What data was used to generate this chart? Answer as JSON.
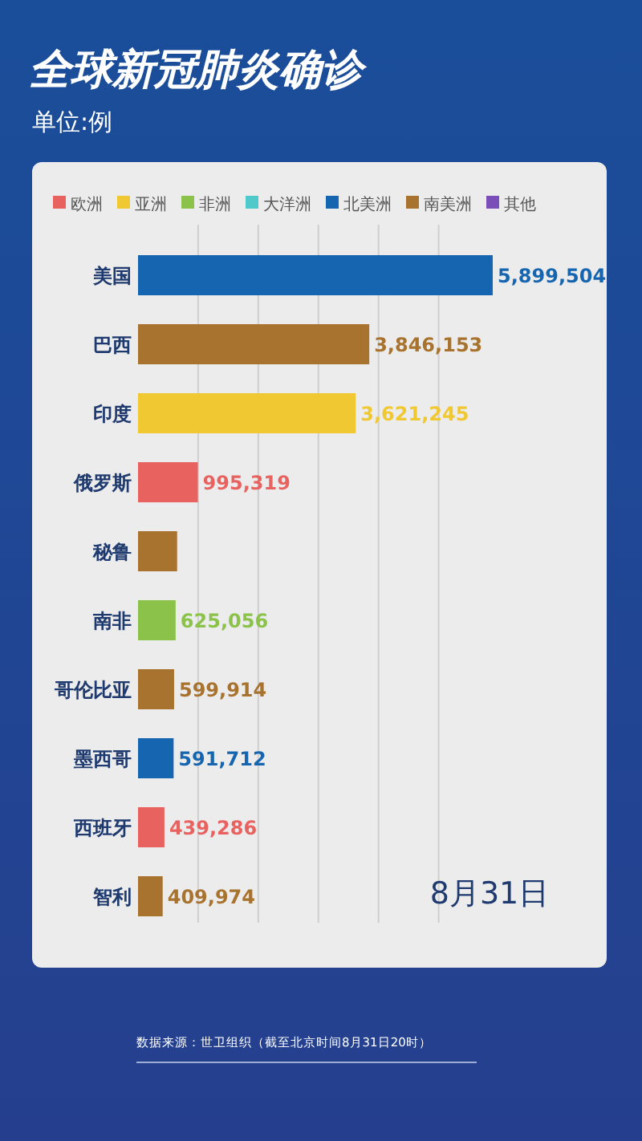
{
  "chart_data": {
    "type": "bar",
    "orientation": "horizontal",
    "stacked": true,
    "title": "全球新冠肺炎确诊",
    "subtitle": "单位:例",
    "categories": [
      "美国",
      "巴西",
      "印度",
      "俄罗斯",
      "秘鲁",
      "南非",
      "哥伦比亚",
      "墨西哥",
      "西班牙",
      "智利"
    ],
    "series": [
      {
        "name": "欧洲",
        "color": "#e8625f",
        "values": [
          null,
          null,
          null,
          995319,
          null,
          null,
          null,
          null,
          439286,
          null
        ],
        "value_labels": [
          null,
          null,
          null,
          "995,319",
          null,
          null,
          null,
          null,
          "439,286",
          null
        ]
      },
      {
        "name": "亚洲",
        "color": "#f0c832",
        "values": [
          null,
          null,
          3621245,
          null,
          null,
          null,
          null,
          null,
          null,
          null
        ],
        "value_labels": [
          null,
          null,
          "3,621,245",
          null,
          null,
          null,
          null,
          null,
          null,
          null
        ]
      },
      {
        "name": "非洲",
        "color": "#8bc34a",
        "values": [
          null,
          null,
          null,
          null,
          null,
          625056,
          null,
          null,
          null,
          null
        ],
        "value_labels": [
          null,
          null,
          null,
          null,
          null,
          "625,056",
          null,
          null,
          null,
          null
        ]
      },
      {
        "name": "大洋洲",
        "color": "#4fc9c9",
        "values": [
          null,
          null,
          null,
          null,
          null,
          null,
          null,
          null,
          null,
          null
        ]
      },
      {
        "name": "北美洲",
        "color": "#1565b0",
        "values": [
          5899504,
          null,
          null,
          null,
          null,
          null,
          null,
          591712,
          null,
          null
        ],
        "value_labels": [
          "5,899,504",
          null,
          null,
          null,
          null,
          null,
          null,
          "591,712",
          null,
          null
        ]
      },
      {
        "name": "南美洲",
        "color": "#a8732e",
        "values": [
          null,
          3846153,
          null,
          null,
          650000,
          null,
          599914,
          null,
          null,
          409974
        ],
        "value_labels": [
          null,
          "3,846,153",
          null,
          null,
          null,
          null,
          "599,914",
          null,
          null,
          "409,974"
        ]
      },
      {
        "name": "其他",
        "color": "#7b4fb8",
        "values": [
          null,
          null,
          null,
          null,
          null,
          null,
          null,
          null,
          null,
          null
        ]
      }
    ],
    "xticks": [
      {
        "value": 1000000,
        "label": null
      },
      {
        "value": 2000000,
        "label": null
      },
      {
        "value": 3000000,
        "label": null
      },
      {
        "value": 4000000,
        "label": null
      },
      {
        "value": 5000000,
        "label": null
      }
    ],
    "grid": "x",
    "legend": "top",
    "tick_labels": "y",
    "annotations": [
      "8月31日",
      "数据来源：世卫组织（截至北京时间8月31日20时）"
    ]
  }
}
